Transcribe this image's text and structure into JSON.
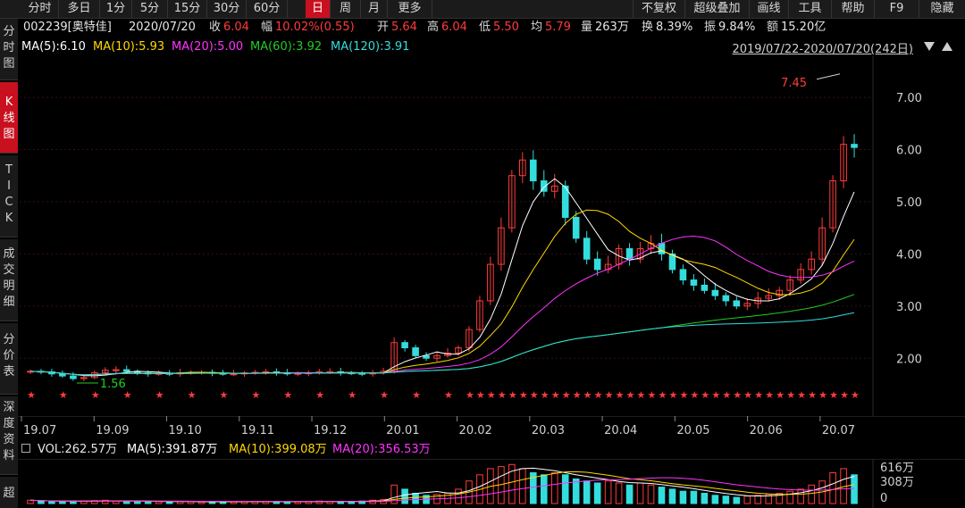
{
  "toolbar": {
    "tabs": [
      "分时",
      "多日",
      "1分",
      "5分",
      "15分",
      "30分",
      "60分",
      "日",
      "周",
      "月",
      "更多"
    ],
    "active_tab": "日",
    "right_buttons": [
      "不复权",
      "超级叠加",
      "画线",
      "工具",
      "帮助",
      "F9",
      "隐藏"
    ]
  },
  "side_tabs": [
    {
      "chars": [
        "分",
        "时",
        "图"
      ],
      "active": false
    },
    {
      "chars": [
        "K",
        "线",
        "图"
      ],
      "active": true
    },
    {
      "chars": [
        "T",
        "I",
        "C",
        "K"
      ],
      "active": false
    },
    {
      "chars": [
        "成",
        "交",
        "明",
        "细"
      ],
      "active": false
    },
    {
      "chars": [
        "分",
        "价",
        "表"
      ],
      "active": false
    },
    {
      "chars": [
        "深",
        "度",
        "资",
        "料"
      ],
      "active": false
    },
    {
      "chars": [
        "超"
      ],
      "active": false
    }
  ],
  "quote": {
    "code_name": "002239[奥特佳]",
    "date": "2020/07/20",
    "close_label": "收",
    "close": "6.04",
    "change_label": "幅",
    "change": "10.02%(0.55)",
    "open_label": "开",
    "open": "5.64",
    "high_label": "高",
    "high": "6.04",
    "low_label": "低",
    "low": "5.50",
    "avg_label": "均",
    "avg": "5.79",
    "vol_label": "量",
    "vol": "263万",
    "turnover_label": "换",
    "turnover": "8.39%",
    "amplitude_label": "振",
    "amplitude": "9.84%",
    "amount_label": "额",
    "amount": "15.20亿"
  },
  "ma": [
    {
      "text": "MA(5):6.10",
      "color": "#ffffff"
    },
    {
      "text": "MA(10):5.93",
      "color": "#ffd800"
    },
    {
      "text": "MA(20):5.00",
      "color": "#ff33ff"
    },
    {
      "text": "MA(60):3.92",
      "color": "#22cc22"
    },
    {
      "text": "MA(120):3.91",
      "color": "#33dddd"
    }
  ],
  "range_text": "2019/07/22-2020/07/20(242日)",
  "volume_line": {
    "vol": "VOL:262.57万",
    "ma5": "MA(5):391.87万",
    "ma10": "MA(10):399.08万",
    "ma20": "MA(20):356.53万"
  },
  "colors": {
    "up": "#ff3b3b",
    "down": "#33dddd",
    "active": "#c8101e"
  },
  "chart_data": {
    "type": "candlestick",
    "price_axis": [
      "7.00",
      "6.00",
      "5.00",
      "4.00",
      "3.00",
      "2.00"
    ],
    "ylim": [
      1.2,
      7.6
    ],
    "x_labels": [
      "19.07",
      "19.09",
      "19.10",
      "19.11",
      "19.12",
      "20.01",
      "20.02",
      "20.03",
      "20.04",
      "20.05",
      "20.06",
      "20.07"
    ],
    "annotations": {
      "high": "7.45",
      "low": "1.56"
    },
    "volume_axis": [
      "616万",
      "308万",
      "0"
    ],
    "close_series": [
      1.75,
      1.74,
      1.7,
      1.66,
      1.61,
      1.63,
      1.72,
      1.77,
      1.78,
      1.75,
      1.72,
      1.7,
      1.71,
      1.7,
      1.72,
      1.73,
      1.73,
      1.71,
      1.7,
      1.7,
      1.72,
      1.73,
      1.74,
      1.72,
      1.7,
      1.71,
      1.72,
      1.74,
      1.74,
      1.72,
      1.71,
      1.7,
      1.72,
      1.75,
      2.3,
      2.2,
      2.05,
      2.0,
      2.05,
      2.1,
      2.2,
      2.55,
      3.1,
      3.8,
      4.5,
      5.5,
      5.8,
      5.4,
      5.2,
      5.3,
      4.7,
      4.3,
      3.9,
      3.7,
      3.8,
      4.1,
      3.9,
      4.1,
      4.2,
      4.0,
      3.7,
      3.5,
      3.4,
      3.3,
      3.2,
      3.1,
      3.0,
      3.05,
      3.15,
      3.2,
      3.3,
      3.5,
      3.7,
      3.9,
      4.5,
      5.4,
      6.1,
      6.04
    ],
    "volume_ratio": [
      0.08,
      0.06,
      0.05,
      0.05,
      0.05,
      0.06,
      0.07,
      0.08,
      0.06,
      0.05,
      0.05,
      0.05,
      0.05,
      0.04,
      0.05,
      0.05,
      0.04,
      0.04,
      0.04,
      0.05,
      0.05,
      0.05,
      0.05,
      0.04,
      0.04,
      0.05,
      0.05,
      0.06,
      0.05,
      0.05,
      0.05,
      0.06,
      0.08,
      0.1,
      0.45,
      0.35,
      0.25,
      0.2,
      0.22,
      0.25,
      0.35,
      0.55,
      0.7,
      0.85,
      0.9,
      0.95,
      0.85,
      0.75,
      0.7,
      0.75,
      0.7,
      0.6,
      0.55,
      0.5,
      0.55,
      0.5,
      0.45,
      0.5,
      0.45,
      0.4,
      0.35,
      0.3,
      0.3,
      0.25,
      0.2,
      0.18,
      0.15,
      0.18,
      0.2,
      0.22,
      0.25,
      0.3,
      0.35,
      0.45,
      0.55,
      0.75,
      0.85,
      0.7
    ]
  }
}
